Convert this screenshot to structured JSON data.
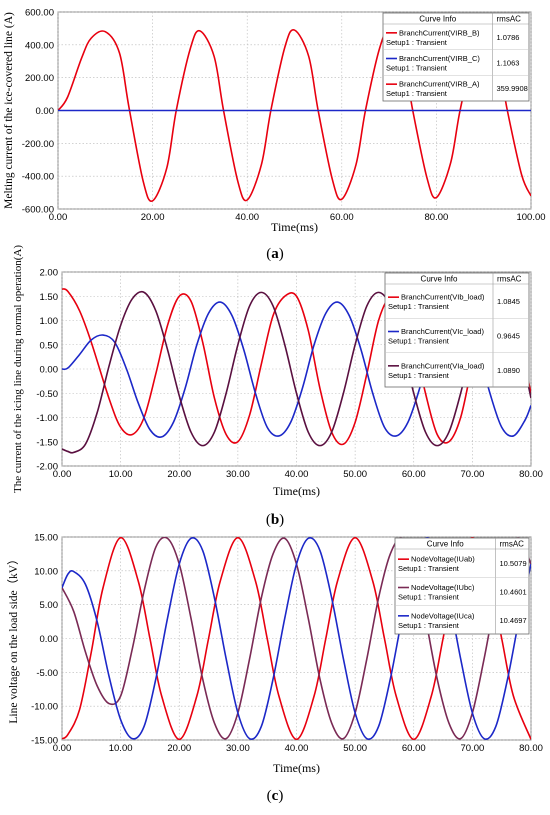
{
  "chart_data": [
    {
      "type": "line",
      "panel_label": "a",
      "xlabel": "Time(ms)",
      "ylabel": "Melting current of the ice-covered line (A)",
      "xlim": [
        0,
        100
      ],
      "ylim": [
        -600,
        600
      ],
      "xticks": [
        0,
        20,
        40,
        60,
        80,
        100
      ],
      "yticks": [
        600,
        400,
        200,
        0,
        -200,
        -400,
        -600
      ],
      "tick_decimals": 2,
      "grid": true,
      "legend": {
        "position": "top-right",
        "header": [
          "Curve Info",
          "rmsAC"
        ],
        "entries": [
          {
            "name": "BranchCurrent(VIRB_B)",
            "sub": "Setup1 : Transient",
            "rms": "1.0786",
            "color": "#e8000f"
          },
          {
            "name": "BranchCurrent(VIRB_C)",
            "sub": "Setup1 : Transient",
            "rms": "1.1063",
            "color": "#1c28c8"
          },
          {
            "name": "BranchCurrent(VIRB_A)",
            "sub": "Setup1 : Transient",
            "rms": "359.9908",
            "color": "#e8000f"
          }
        ]
      },
      "series": [
        {
          "name": "BranchCurrent(VIRB_A)",
          "color": "#e8000f",
          "x": [
            0,
            2,
            5,
            7,
            10,
            13,
            15,
            18,
            20,
            23,
            25,
            28,
            30,
            33,
            35,
            38,
            40,
            43,
            45,
            48,
            50,
            53,
            55,
            58,
            60,
            63,
            65,
            68,
            70,
            73,
            75,
            78,
            80,
            83,
            85,
            88,
            90,
            93,
            95,
            98,
            100
          ],
          "y": [
            0,
            80,
            320,
            440,
            480,
            350,
            20,
            -430,
            -550,
            -350,
            0,
            380,
            485,
            330,
            0,
            -430,
            -545,
            -330,
            0,
            390,
            490,
            330,
            0,
            -420,
            -540,
            -330,
            0,
            380,
            480,
            320,
            0,
            -410,
            -530,
            -320,
            0,
            370,
            475,
            310,
            0,
            -390,
            -520
          ]
        },
        {
          "name": "BranchCurrent(VIRB_C)",
          "color": "#1c28c8",
          "x": [
            0,
            100
          ],
          "y": [
            0,
            0
          ]
        }
      ]
    },
    {
      "type": "line",
      "panel_label": "b",
      "xlabel": "Time(ms)",
      "ylabel": "The current of the icing line during normal operation(A)",
      "xlim": [
        0,
        80
      ],
      "ylim": [
        -2,
        2
      ],
      "xticks": [
        0,
        10,
        20,
        30,
        40,
        50,
        60,
        70,
        80
      ],
      "yticks": [
        2,
        1.5,
        1,
        0.5,
        0,
        -0.5,
        -1,
        -1.5,
        -2
      ],
      "tick_decimals": 2,
      "grid": true,
      "legend": {
        "position": "top-right",
        "header": [
          "Curve Info",
          "rmsAC"
        ],
        "entries": [
          {
            "name": "BranchCurrent(VIb_load)",
            "sub": "Setup1 : Transient",
            "rms": "1.0845",
            "color": "#e8000f"
          },
          {
            "name": "BranchCurrent(VIc_load)",
            "sub": "Setup1 : Transient",
            "rms": "0.9645",
            "color": "#1c28c8"
          },
          {
            "name": "BranchCurrent(VIa_load)",
            "sub": "Setup1 : Transient",
            "rms": "1.0890",
            "color": "#5a1040"
          }
        ]
      },
      "series": [
        {
          "name": "BranchCurrent(VIb_load)",
          "color": "#e8000f",
          "x": [
            0,
            1,
            3,
            5,
            8,
            10,
            12,
            14,
            16,
            18,
            20,
            22,
            24,
            26,
            28,
            30,
            32,
            34,
            36,
            38,
            40,
            42,
            44,
            46,
            48,
            50,
            52,
            54,
            56,
            58,
            60,
            62,
            64,
            66,
            68,
            70,
            72,
            74,
            76,
            78,
            80
          ],
          "y": [
            1.65,
            1.6,
            1.2,
            0.55,
            -0.6,
            -1.2,
            -1.35,
            -1.0,
            -0.1,
            0.9,
            1.5,
            1.4,
            0.55,
            -0.6,
            -1.35,
            -1.5,
            -0.95,
            0.1,
            1.1,
            1.5,
            1.5,
            0.8,
            -0.4,
            -1.3,
            -1.55,
            -1.1,
            -0.1,
            1.0,
            1.5,
            1.4,
            0.6,
            -0.5,
            -1.35,
            -1.5,
            -1.0,
            0.1,
            1.1,
            1.5,
            1.4,
            0.6,
            -0.5
          ]
        },
        {
          "name": "BranchCurrent(VIc_load)",
          "color": "#1c28c8",
          "x": [
            0,
            1,
            3,
            5,
            7,
            9,
            11,
            13,
            15,
            17,
            19,
            21,
            23,
            25,
            27,
            29,
            31,
            33,
            35,
            37,
            39,
            41,
            43,
            45,
            47,
            49,
            51,
            53,
            55,
            57,
            59,
            61,
            63,
            65,
            67,
            69,
            71,
            73,
            75,
            77,
            79,
            80
          ],
          "y": [
            0,
            0.02,
            0.3,
            0.6,
            0.7,
            0.55,
            0.0,
            -0.7,
            -1.25,
            -1.4,
            -1.1,
            -0.4,
            0.5,
            1.15,
            1.38,
            1.1,
            0.4,
            -0.5,
            -1.2,
            -1.38,
            -1.1,
            -0.4,
            0.5,
            1.15,
            1.38,
            1.1,
            0.4,
            -0.5,
            -1.2,
            -1.38,
            -1.1,
            -0.4,
            0.5,
            1.15,
            1.38,
            1.1,
            0.4,
            -0.5,
            -1.2,
            -1.38,
            -1.05,
            -0.75
          ]
        },
        {
          "name": "BranchCurrent(VIa_load)",
          "color": "#5a1040",
          "x": [
            0,
            1,
            2,
            4,
            6,
            8,
            10,
            12,
            14,
            16,
            18,
            20,
            22,
            24,
            26,
            28,
            30,
            32,
            34,
            36,
            38,
            40,
            42,
            44,
            46,
            48,
            50,
            52,
            54,
            56,
            58,
            60,
            62,
            64,
            66,
            68,
            70,
            72,
            74,
            76,
            78,
            80
          ],
          "y": [
            -1.65,
            -1.7,
            -1.72,
            -1.55,
            -0.9,
            0.05,
            0.9,
            1.45,
            1.58,
            1.2,
            0.4,
            -0.55,
            -1.3,
            -1.58,
            -1.3,
            -0.5,
            0.5,
            1.3,
            1.58,
            1.3,
            0.5,
            -0.5,
            -1.3,
            -1.58,
            -1.3,
            -0.5,
            0.5,
            1.3,
            1.58,
            1.3,
            0.5,
            -0.5,
            -1.3,
            -1.58,
            -1.3,
            -0.5,
            0.5,
            1.3,
            1.58,
            1.3,
            0.5,
            -0.6
          ]
        }
      ]
    },
    {
      "type": "line",
      "panel_label": "c",
      "xlabel": "Time(ms)",
      "ylabel": "Line voltage on the load side（kV）",
      "xlim": [
        0,
        80
      ],
      "ylim": [
        -15,
        15
      ],
      "xticks": [
        0,
        10,
        20,
        30,
        40,
        50,
        60,
        70,
        80
      ],
      "yticks": [
        15,
        10,
        5,
        0,
        -5,
        -10,
        -15
      ],
      "tick_decimals": 2,
      "grid": true,
      "legend": {
        "position": "top-right",
        "header": [
          "Curve Info",
          "rmsAC"
        ],
        "entries": [
          {
            "name": "NodeVoltage(IUab)",
            "sub": "Setup1 : Transient",
            "rms": "10.5079",
            "color": "#e8000f"
          },
          {
            "name": "NodeVoltage(IUbc)",
            "sub": "Setup1 : Transient",
            "rms": "10.4601",
            "color": "#7a2a55"
          },
          {
            "name": "NodeVoltage(IUca)",
            "sub": "Setup1 : Transient",
            "rms": "10.4697",
            "color": "#1c28c8"
          }
        ]
      },
      "series": [
        {
          "name": "NodeVoltage(IUab)",
          "color": "#e8000f",
          "x": [
            0,
            1,
            3,
            5,
            7,
            10,
            13,
            15,
            17,
            20,
            23,
            25,
            27,
            30,
            33,
            35,
            37,
            40,
            43,
            45,
            47,
            50,
            53,
            55,
            57,
            60,
            63,
            65,
            67,
            70,
            73,
            75,
            77,
            80
          ],
          "y": [
            -14.8,
            -14.2,
            -10.5,
            -2,
            7.5,
            14.9,
            8.5,
            0,
            -8.5,
            -14.9,
            -8.5,
            0,
            8.5,
            14.9,
            8.5,
            0,
            -8.5,
            -14.9,
            -8.5,
            0,
            8.5,
            14.9,
            8.5,
            0,
            -8.5,
            -14.9,
            -8.5,
            0,
            8.5,
            14.9,
            8.5,
            0,
            -8.5,
            -14.9
          ]
        },
        {
          "name": "NodeVoltage(IUbc)",
          "color": "#7a2a55",
          "x": [
            0,
            2,
            4,
            6,
            8,
            10,
            12,
            14,
            16,
            18,
            20,
            22,
            24,
            26,
            28,
            30,
            32,
            34,
            36,
            38,
            40,
            42,
            44,
            46,
            48,
            50,
            52,
            54,
            56,
            58,
            60,
            62,
            64,
            66,
            68,
            70,
            72,
            74,
            76,
            78,
            80
          ],
          "y": [
            7.5,
            4,
            -2,
            -7,
            -9.6,
            -8.5,
            -1.5,
            7,
            13.5,
            14.8,
            11,
            3,
            -6,
            -12.5,
            -14.8,
            -11,
            -3,
            6,
            12.5,
            14.8,
            11,
            3,
            -6,
            -12.5,
            -14.8,
            -11,
            -3,
            6,
            12.5,
            14.8,
            11,
            3,
            -6,
            -12.5,
            -14.8,
            -11,
            -3,
            6,
            12.5,
            14.8,
            11
          ]
        },
        {
          "name": "NodeVoltage(IUca)",
          "color": "#1c28c8",
          "x": [
            0,
            1,
            2,
            4,
            6,
            8,
            10,
            12,
            14,
            16,
            18,
            20,
            22,
            24,
            26,
            28,
            30,
            32,
            34,
            36,
            38,
            40,
            42,
            44,
            46,
            48,
            50,
            52,
            54,
            56,
            58,
            60,
            62,
            64,
            66,
            68,
            70,
            72,
            74,
            76,
            78,
            80
          ],
          "y": [
            7.5,
            9.5,
            9.9,
            8,
            2.5,
            -5.5,
            -12,
            -14.8,
            -13,
            -6,
            3,
            11,
            14.8,
            13,
            6,
            -3,
            -11,
            -14.8,
            -13,
            -6,
            3,
            11,
            14.8,
            13,
            6,
            -3,
            -11,
            -14.8,
            -13,
            -6,
            3,
            11,
            14.8,
            13,
            6,
            -3,
            -11,
            -14.8,
            -13,
            -6,
            3,
            11
          ]
        }
      ]
    }
  ]
}
